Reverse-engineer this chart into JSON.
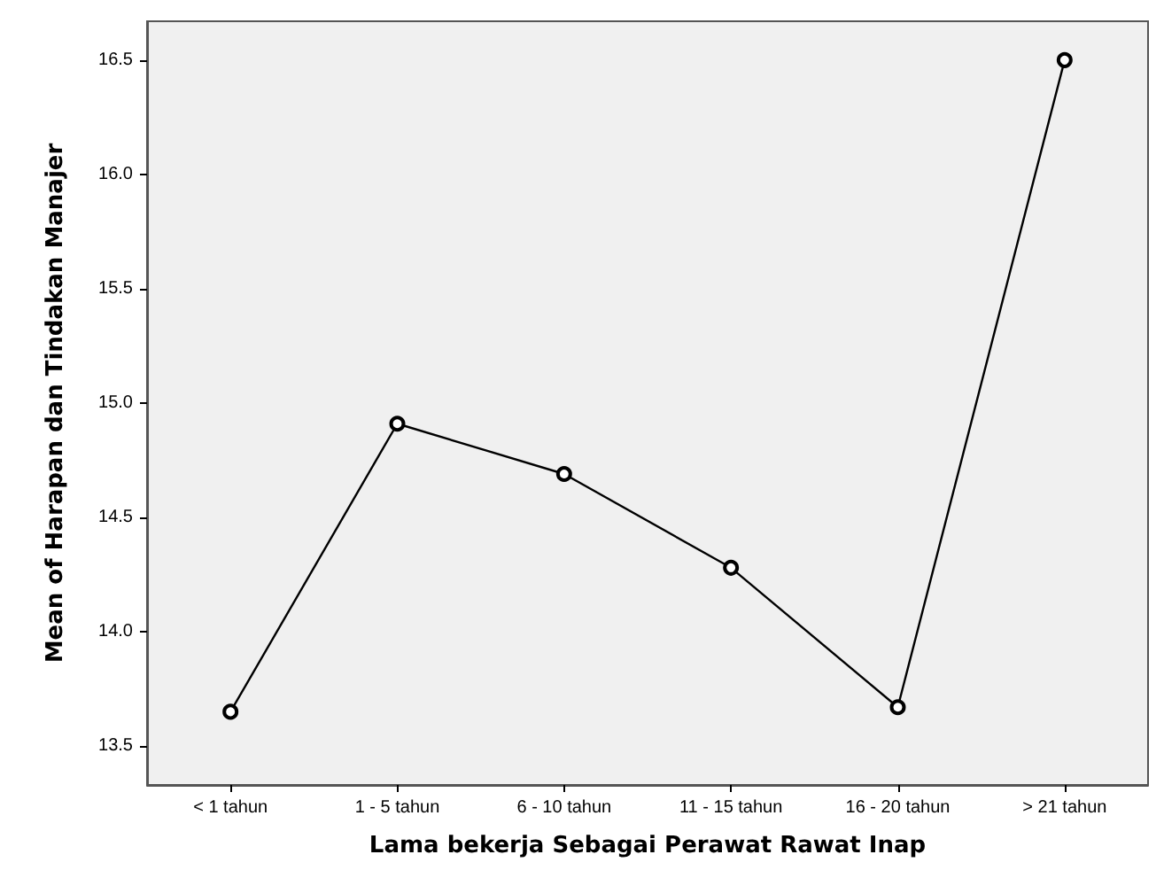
{
  "chart_data": {
    "type": "line",
    "xlabel": "Lama bekerja Sebagai Perawat Rawat Inap",
    "ylabel": "Mean of Harapan dan Tindakan Manajer",
    "categories": [
      "< 1 tahun",
      "1 - 5 tahun",
      "6 - 10 tahun",
      "11 - 15 tahun",
      "16 - 20 tahun",
      "> 21 tahun"
    ],
    "series": [
      {
        "color": "#000000",
        "values": [
          13.65,
          14.91,
          14.69,
          14.28,
          13.67,
          16.5
        ]
      }
    ],
    "ylim": [
      13.33,
      16.67
    ],
    "yticks": [
      {
        "value": 13.5,
        "label": "13.5"
      },
      {
        "value": 14,
        "label": "14.0"
      },
      {
        "value": 14.5,
        "label": "14.5"
      },
      {
        "value": 15,
        "label": "15.0"
      },
      {
        "value": 15.5,
        "label": "15.5"
      },
      {
        "value": 16,
        "label": "16.0"
      },
      {
        "value": 16.5,
        "label": "16.5"
      }
    ],
    "grid": false,
    "marker": "circle",
    "line_style": "solid"
  }
}
